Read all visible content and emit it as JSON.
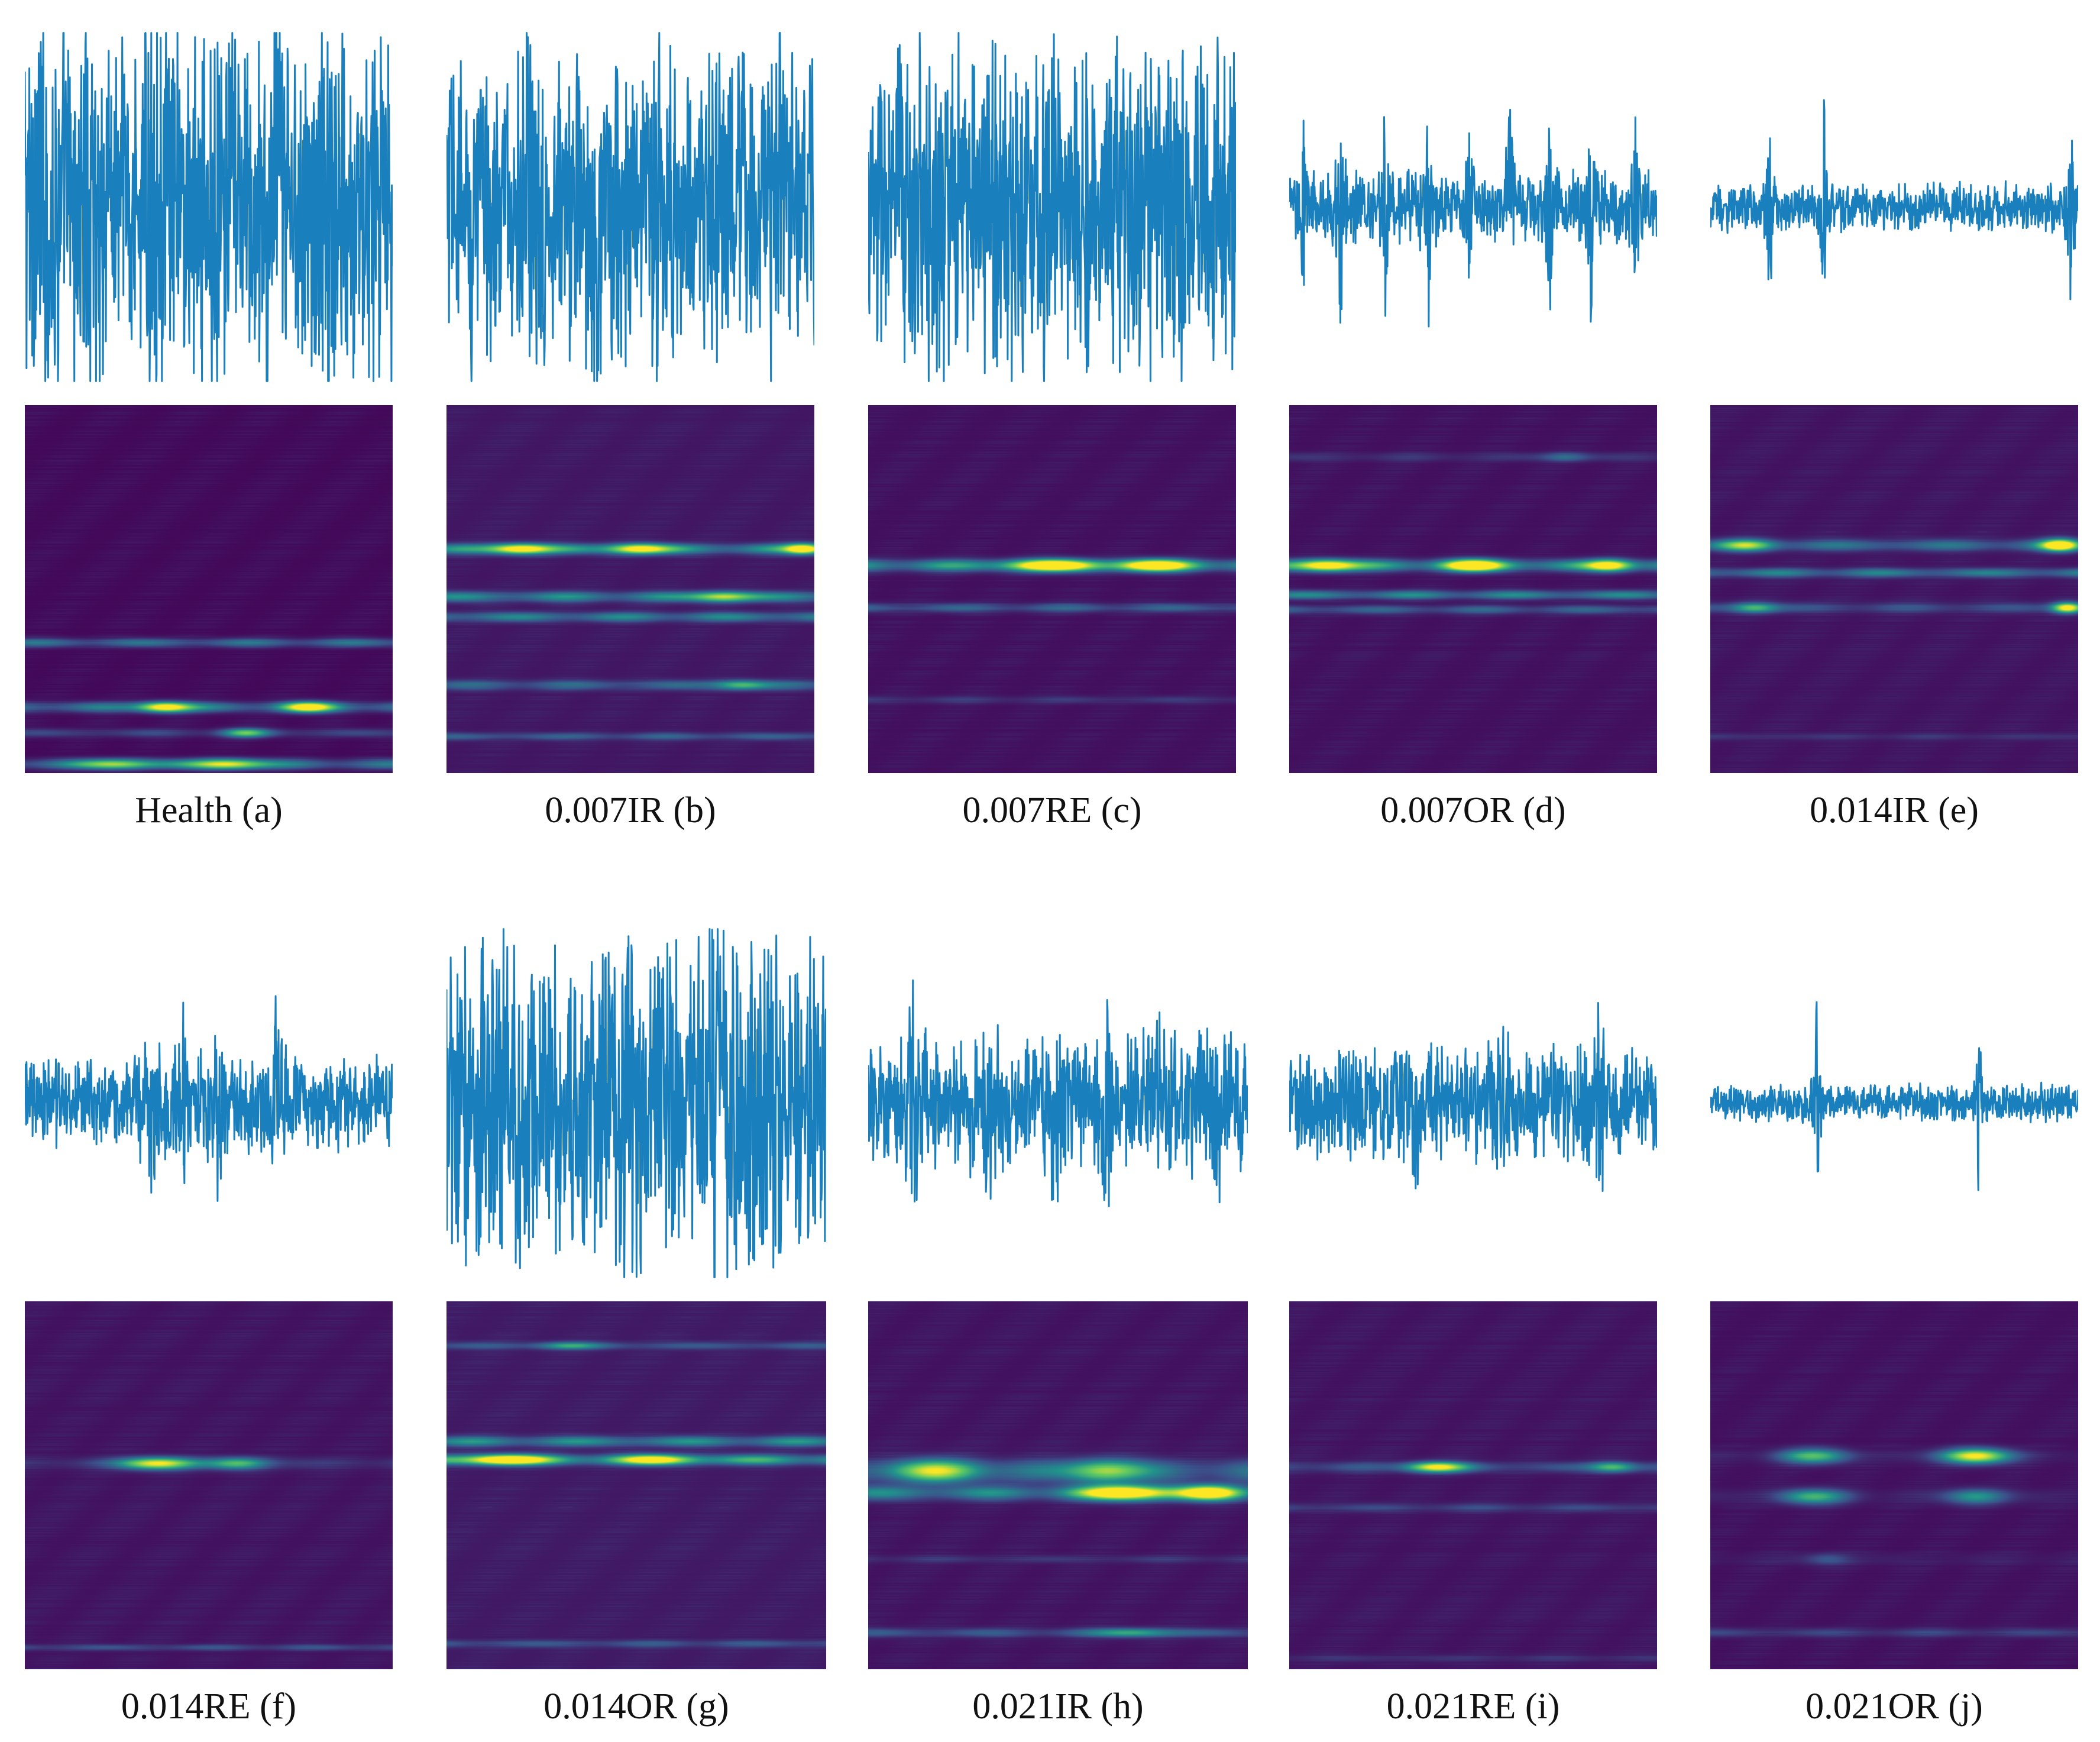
{
  "colors": {
    "signal_line": "#1a7fbd",
    "colormap": [
      "#440154",
      "#3b528b",
      "#21918c",
      "#5ec962",
      "#fde725"
    ]
  },
  "panels": [
    {
      "caption": "Health (a)",
      "signal": {
        "style": "continuous",
        "amplitude": 0.95,
        "noise": 0.55,
        "impulses": []
      },
      "spectrogram": {
        "background": 0.02,
        "bands": [
          {
            "pos": 0.645,
            "width": 0.012,
            "peak": 0.38,
            "hot": []
          },
          {
            "pos": 0.82,
            "width": 0.014,
            "peak": 0.42,
            "hot": [
              [
                0.38,
                0.07,
                0.9
              ],
              [
                0.77,
                0.07,
                0.85
              ]
            ]
          },
          {
            "pos": 0.89,
            "width": 0.012,
            "peak": 0.2,
            "hot": [
              [
                0.6,
                0.06,
                0.55
              ]
            ]
          },
          {
            "pos": 0.975,
            "width": 0.014,
            "peak": 0.4,
            "hot": [
              [
                0.25,
                0.1,
                0.6
              ],
              [
                0.55,
                0.1,
                0.75
              ]
            ]
          }
        ]
      }
    },
    {
      "caption": "0.007IR (b)",
      "signal": {
        "style": "dense",
        "amplitude": 0.6,
        "noise": 0.55,
        "impulses": [
          0.08,
          0.24,
          0.41,
          0.57,
          0.73,
          0.9
        ]
      },
      "spectrogram": {
        "background": 0.06,
        "bands": [
          {
            "pos": 0.39,
            "width": 0.014,
            "peak": 0.5,
            "hot": [
              [
                0.2,
                0.08,
                0.85
              ],
              [
                0.52,
                0.08,
                0.75
              ],
              [
                0.97,
                0.05,
                0.85
              ]
            ]
          },
          {
            "pos": 0.52,
            "width": 0.014,
            "peak": 0.45,
            "hot": [
              [
                0.75,
                0.08,
                0.6
              ]
            ]
          },
          {
            "pos": 0.575,
            "width": 0.013,
            "peak": 0.42,
            "hot": []
          },
          {
            "pos": 0.76,
            "width": 0.013,
            "peak": 0.3,
            "hot": [
              [
                0.8,
                0.07,
                0.45
              ]
            ]
          },
          {
            "pos": 0.9,
            "width": 0.01,
            "peak": 0.26,
            "hot": []
          }
        ]
      }
    },
    {
      "caption": "0.007RE (c)",
      "signal": {
        "style": "dense",
        "amplitude": 0.7,
        "noise": 0.6,
        "impulses": []
      },
      "spectrogram": {
        "background": 0.04,
        "bands": [
          {
            "pos": 0.435,
            "width": 0.016,
            "peak": 0.55,
            "hot": [
              [
                0.5,
                0.12,
                0.9
              ],
              [
                0.78,
                0.1,
                0.85
              ]
            ]
          },
          {
            "pos": 0.55,
            "width": 0.012,
            "peak": 0.3,
            "hot": []
          },
          {
            "pos": 0.8,
            "width": 0.01,
            "peak": 0.14,
            "hot": []
          }
        ]
      }
    },
    {
      "caption": "0.007OR (d)",
      "signal": {
        "style": "impulsive",
        "amplitude": 0.15,
        "noise": 0.12,
        "impulses": [
          0.04,
          0.14,
          0.26,
          0.38,
          0.49,
          0.6,
          0.71,
          0.82,
          0.94
        ]
      },
      "spectrogram": {
        "background": 0.04,
        "bands": [
          {
            "pos": 0.14,
            "width": 0.012,
            "peak": 0.12,
            "hot": [
              [
                0.75,
                0.06,
                0.25
              ]
            ]
          },
          {
            "pos": 0.435,
            "width": 0.016,
            "peak": 0.55,
            "hot": [
              [
                0.1,
                0.08,
                0.85
              ],
              [
                0.5,
                0.08,
                0.95
              ],
              [
                0.87,
                0.06,
                0.75
              ]
            ]
          },
          {
            "pos": 0.515,
            "width": 0.012,
            "peak": 0.45,
            "hot": []
          },
          {
            "pos": 0.555,
            "width": 0.012,
            "peak": 0.3,
            "hot": []
          }
        ]
      }
    },
    {
      "caption": "0.014IR (e)",
      "signal": {
        "style": "impulsive",
        "amplitude": 0.1,
        "noise": 0.08,
        "impulses": [
          0.16,
          0.31,
          0.98
        ]
      },
      "spectrogram": {
        "background": 0.05,
        "bands": [
          {
            "pos": 0.38,
            "width": 0.016,
            "peak": 0.35,
            "hot": [
              [
                0.1,
                0.07,
                0.55
              ],
              [
                0.95,
                0.05,
                1.0
              ]
            ]
          },
          {
            "pos": 0.455,
            "width": 0.012,
            "peak": 0.4,
            "hot": []
          },
          {
            "pos": 0.55,
            "width": 0.014,
            "peak": 0.22,
            "hot": [
              [
                0.12,
                0.06,
                0.5
              ],
              [
                0.97,
                0.04,
                0.95
              ]
            ]
          },
          {
            "pos": 0.9,
            "width": 0.01,
            "peak": 0.1,
            "hot": []
          }
        ]
      }
    },
    {
      "caption": "0.014RE (f)",
      "signal": {
        "style": "bursty",
        "amplitude": 0.2,
        "noise": 0.15,
        "impulses": [
          0.34,
          0.43,
          0.52,
          0.68
        ]
      },
      "spectrogram": {
        "background": 0.05,
        "bands": [
          {
            "pos": 0.44,
            "width": 0.016,
            "peak": 0.12,
            "hot": [
              [
                0.36,
                0.1,
                0.9
              ],
              [
                0.58,
                0.08,
                0.55
              ]
            ]
          },
          {
            "pos": 0.94,
            "width": 0.008,
            "peak": 0.22,
            "hot": []
          }
        ]
      }
    },
    {
      "caption": "0.014OR (g)",
      "signal": {
        "style": "dense",
        "amplitude": 0.8,
        "noise": 0.5,
        "impulses": [
          0.15,
          0.47,
          0.71
        ]
      },
      "spectrogram": {
        "background": 0.07,
        "bands": [
          {
            "pos": 0.12,
            "width": 0.01,
            "peak": 0.22,
            "hot": [
              [
                0.32,
                0.08,
                0.35
              ]
            ]
          },
          {
            "pos": 0.38,
            "width": 0.014,
            "peak": 0.45,
            "hot": []
          },
          {
            "pos": 0.43,
            "width": 0.014,
            "peak": 0.6,
            "hot": [
              [
                0.15,
                0.1,
                0.9
              ],
              [
                0.55,
                0.1,
                0.6
              ]
            ]
          },
          {
            "pos": 0.93,
            "width": 0.01,
            "peak": 0.22,
            "hot": []
          }
        ]
      }
    },
    {
      "caption": "0.021IR (h)",
      "signal": {
        "style": "bursty",
        "amplitude": 0.25,
        "noise": 0.25,
        "impulses": [
          0.12,
          0.32,
          0.5,
          0.63,
          0.76,
          0.92
        ]
      },
      "spectrogram": {
        "background": 0.05,
        "bands": [
          {
            "pos": 0.46,
            "width": 0.03,
            "peak": 0.35,
            "hot": [
              [
                0.18,
                0.12,
                0.6
              ],
              [
                0.62,
                0.1,
                0.6
              ]
            ]
          },
          {
            "pos": 0.52,
            "width": 0.02,
            "peak": 0.45,
            "hot": [
              [
                0.68,
                0.12,
                0.95
              ],
              [
                0.9,
                0.08,
                0.85
              ]
            ]
          },
          {
            "pos": 0.7,
            "width": 0.01,
            "peak": 0.12,
            "hot": []
          },
          {
            "pos": 0.9,
            "width": 0.012,
            "peak": 0.25,
            "hot": [
              [
                0.7,
                0.1,
                0.4
              ]
            ]
          }
        ]
      }
    },
    {
      "caption": "0.021RE (i)",
      "signal": {
        "style": "bursty",
        "amplitude": 0.22,
        "noise": 0.2,
        "impulses": [
          0.35,
          0.58,
          0.84
        ]
      },
      "spectrogram": {
        "background": 0.05,
        "bands": [
          {
            "pos": 0.45,
            "width": 0.014,
            "peak": 0.22,
            "hot": [
              [
                0.4,
                0.08,
                0.85
              ],
              [
                0.88,
                0.06,
                0.5
              ]
            ]
          },
          {
            "pos": 0.56,
            "width": 0.012,
            "peak": 0.18,
            "hot": []
          },
          {
            "pos": 0.97,
            "width": 0.01,
            "peak": 0.1,
            "hot": []
          }
        ]
      }
    },
    {
      "caption": "0.021OR (j)",
      "signal": {
        "style": "impulsive",
        "amplitude": 0.08,
        "noise": 0.06,
        "impulses": [
          0.29,
          0.73
        ]
      },
      "spectrogram": {
        "background": 0.04,
        "bands": [
          {
            "pos": 0.42,
            "width": 0.02,
            "peak": 0.06,
            "hot": [
              [
                0.28,
                0.09,
                0.6
              ],
              [
                0.72,
                0.09,
                0.95
              ]
            ]
          },
          {
            "pos": 0.53,
            "width": 0.02,
            "peak": 0.06,
            "hot": [
              [
                0.28,
                0.09,
                0.55
              ],
              [
                0.72,
                0.08,
                0.45
              ]
            ]
          },
          {
            "pos": 0.7,
            "width": 0.016,
            "peak": 0.05,
            "hot": [
              [
                0.32,
                0.06,
                0.2
              ]
            ]
          },
          {
            "pos": 0.9,
            "width": 0.012,
            "peak": 0.18,
            "hot": []
          }
        ]
      }
    }
  ]
}
